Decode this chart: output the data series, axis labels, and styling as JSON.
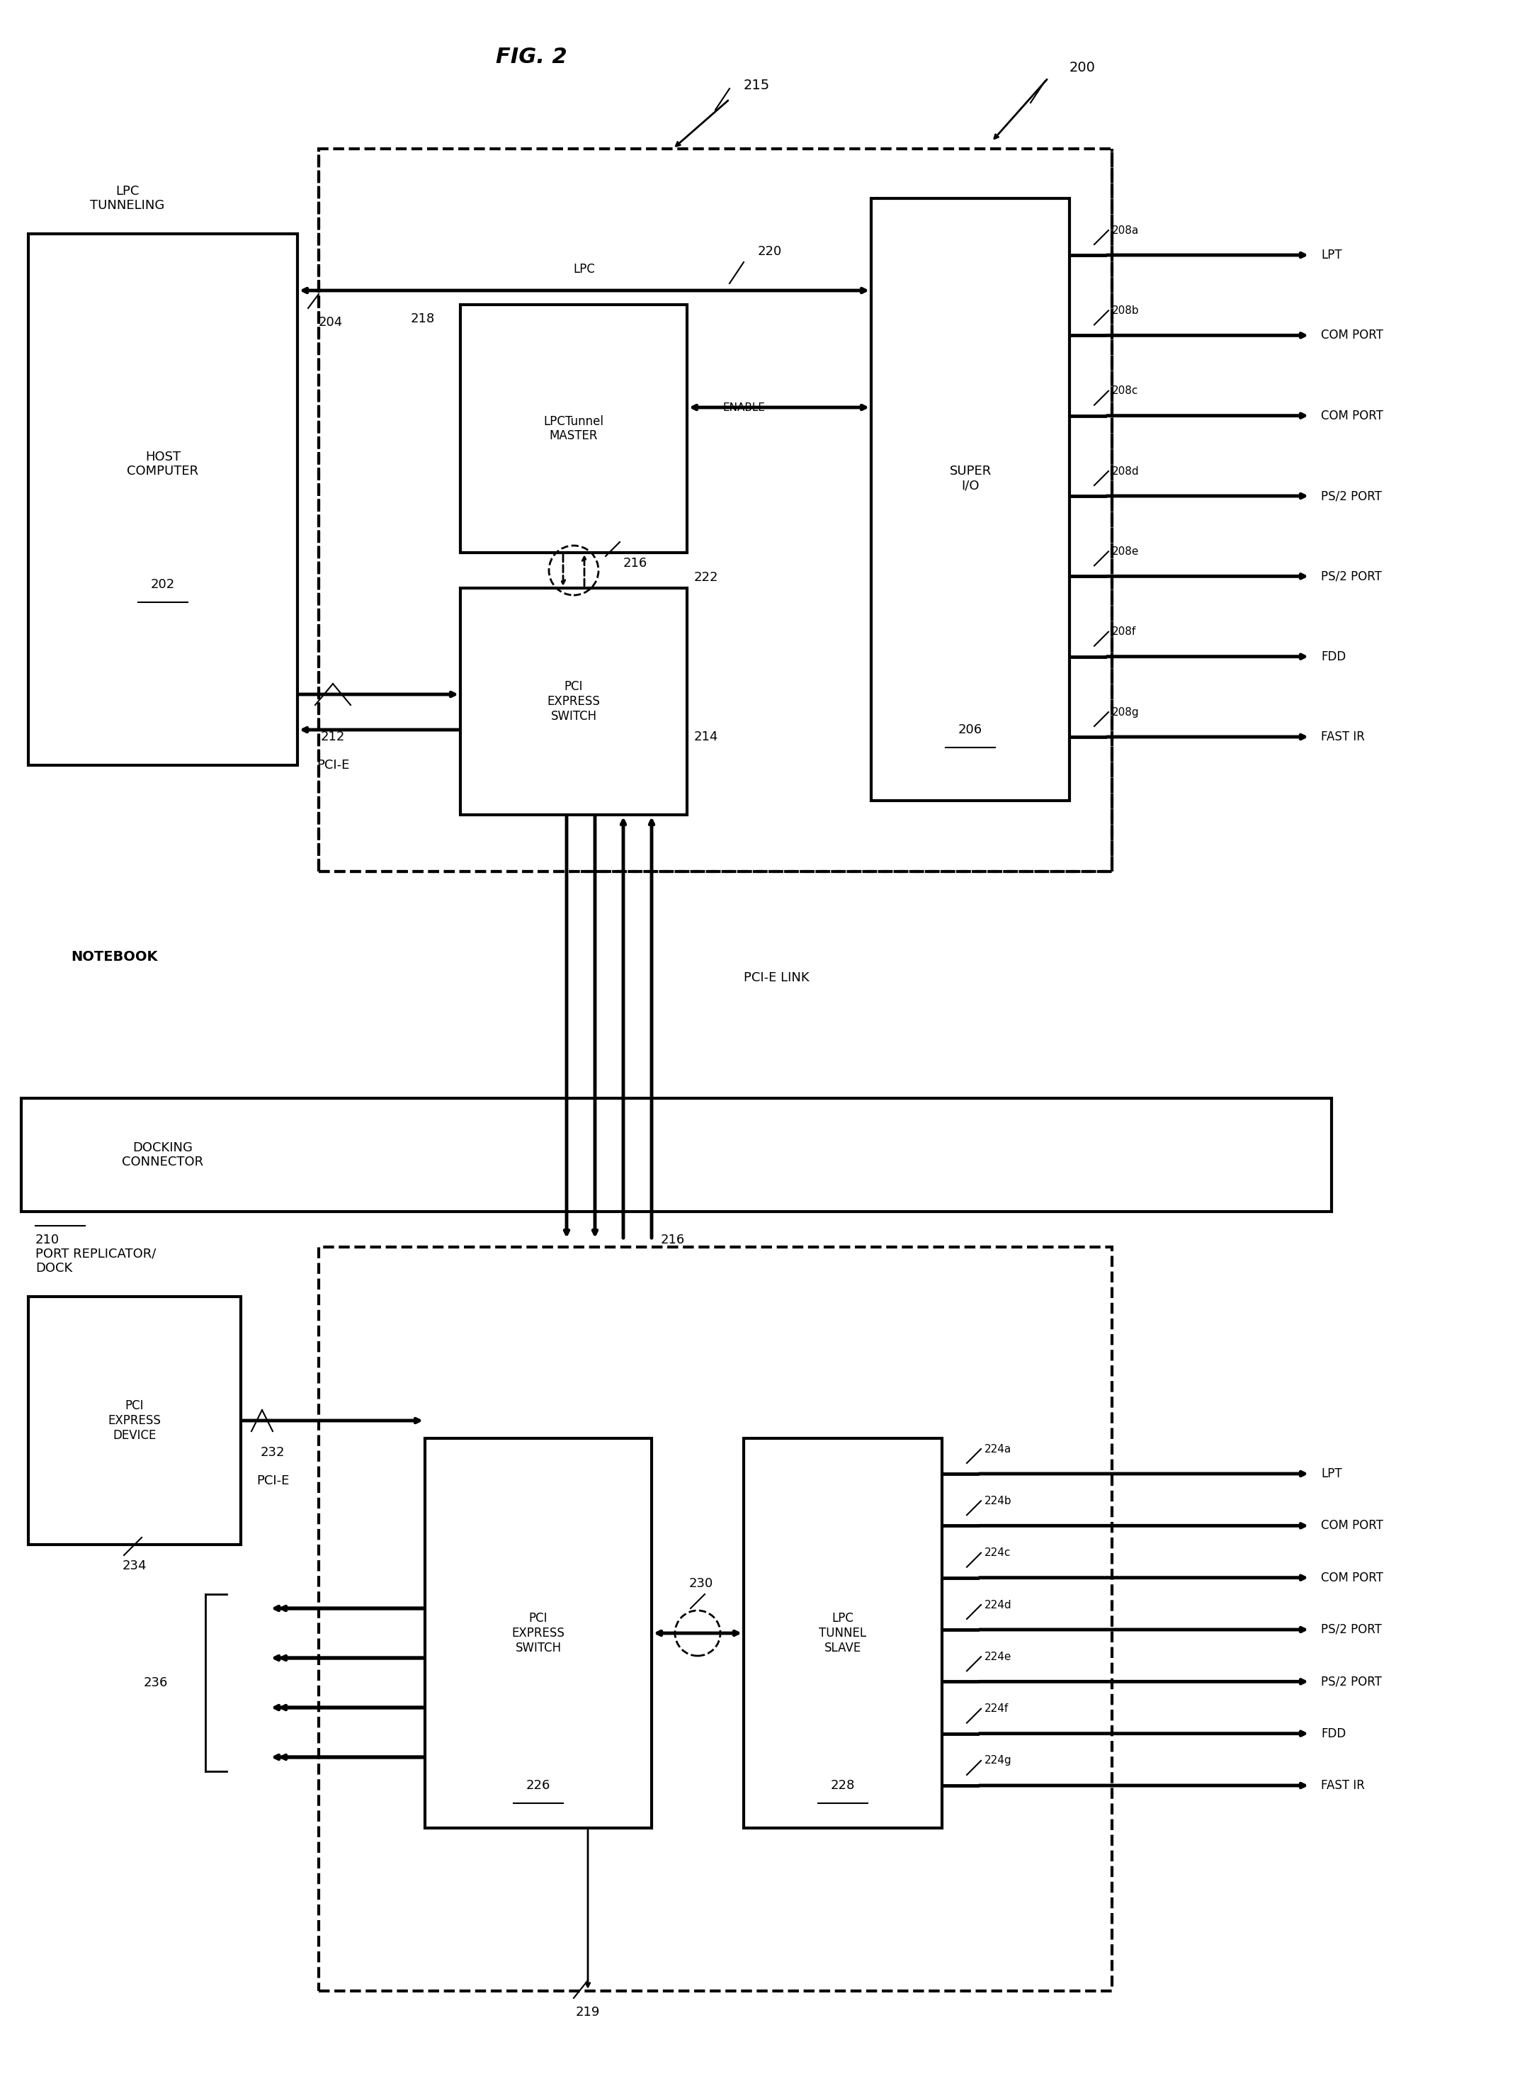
{
  "fig_title": "FIG. 2",
  "ref_200": "200",
  "ref_215": "215",
  "ref_219": "219",
  "background": "#ffffff",
  "text_color": "#000000",
  "line_color": "#000000",
  "lpc_tunneling_label": "LPC\nTUNNELING",
  "notebook_label": "NOTEBOOK",
  "pci_e_link_label": "PCI-E LINK",
  "docking_connector_label": "DOCKING\nCONNECTOR",
  "port_replicator_label": "PORT REPLICATOR/\nDOCK",
  "host_computer_label": "HOST\nCOMPUTER",
  "host_computer_ref": "202",
  "lpc_label": "LPC",
  "lpc_ref": "204",
  "super_io_label": "SUPER\nI/O",
  "super_io_ref": "206",
  "lpctunnel_master_label": "LPCTunnel\nMASTER",
  "lpctunnel_master_ref": "218",
  "enable_label": "ENABLE",
  "enable_ref": "220",
  "pci_express_switch_top_label": "PCI\nEXPRESS\nSWITCH",
  "pci_express_switch_top_ref": "214",
  "ref_216_top": "216",
  "ref_222": "222",
  "pci_e_top_ref": "212",
  "pci_e_top_label": "PCI-E",
  "pci_express_switch_bottom_label": "PCI\nEXPRESS\nSWITCH",
  "pci_express_switch_bottom_ref": "226",
  "lpc_tunnel_slave_label": "LPC\nTUNNEL\nSLAVE",
  "lpc_tunnel_slave_ref": "228",
  "ref_230": "230",
  "ref_216_bottom": "216",
  "pci_express_device_label": "PCI\nEXPRESS\nDEVICE",
  "pci_express_device_ref": "234",
  "pci_e_bottom_ref": "232",
  "pci_e_bottom_label": "PCI-E",
  "ref_236": "236",
  "top_ports": [
    "LPT",
    "COM PORT",
    "COM PORT",
    "PS/2 PORT",
    "PS/2 PORT",
    "FDD",
    "FAST IR"
  ],
  "top_port_refs": [
    "208a",
    "208b",
    "208c",
    "208d",
    "208e",
    "208f",
    "208g"
  ],
  "bottom_ports": [
    "LPT",
    "COM PORT",
    "COM PORT",
    "PS/2 PORT",
    "PS/2 PORT",
    "FDD",
    "FAST IR"
  ],
  "bottom_port_refs": [
    "224a",
    "224b",
    "224c",
    "224d",
    "224e",
    "224f",
    "224g"
  ]
}
